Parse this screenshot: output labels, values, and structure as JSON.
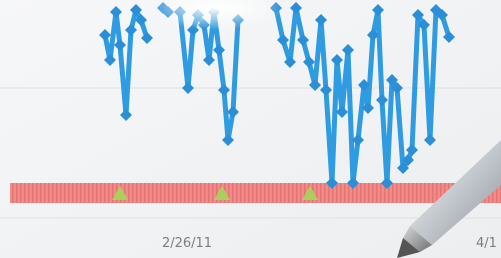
{
  "axis_labels": [
    "2/26/11",
    "4/1"
  ]
}
